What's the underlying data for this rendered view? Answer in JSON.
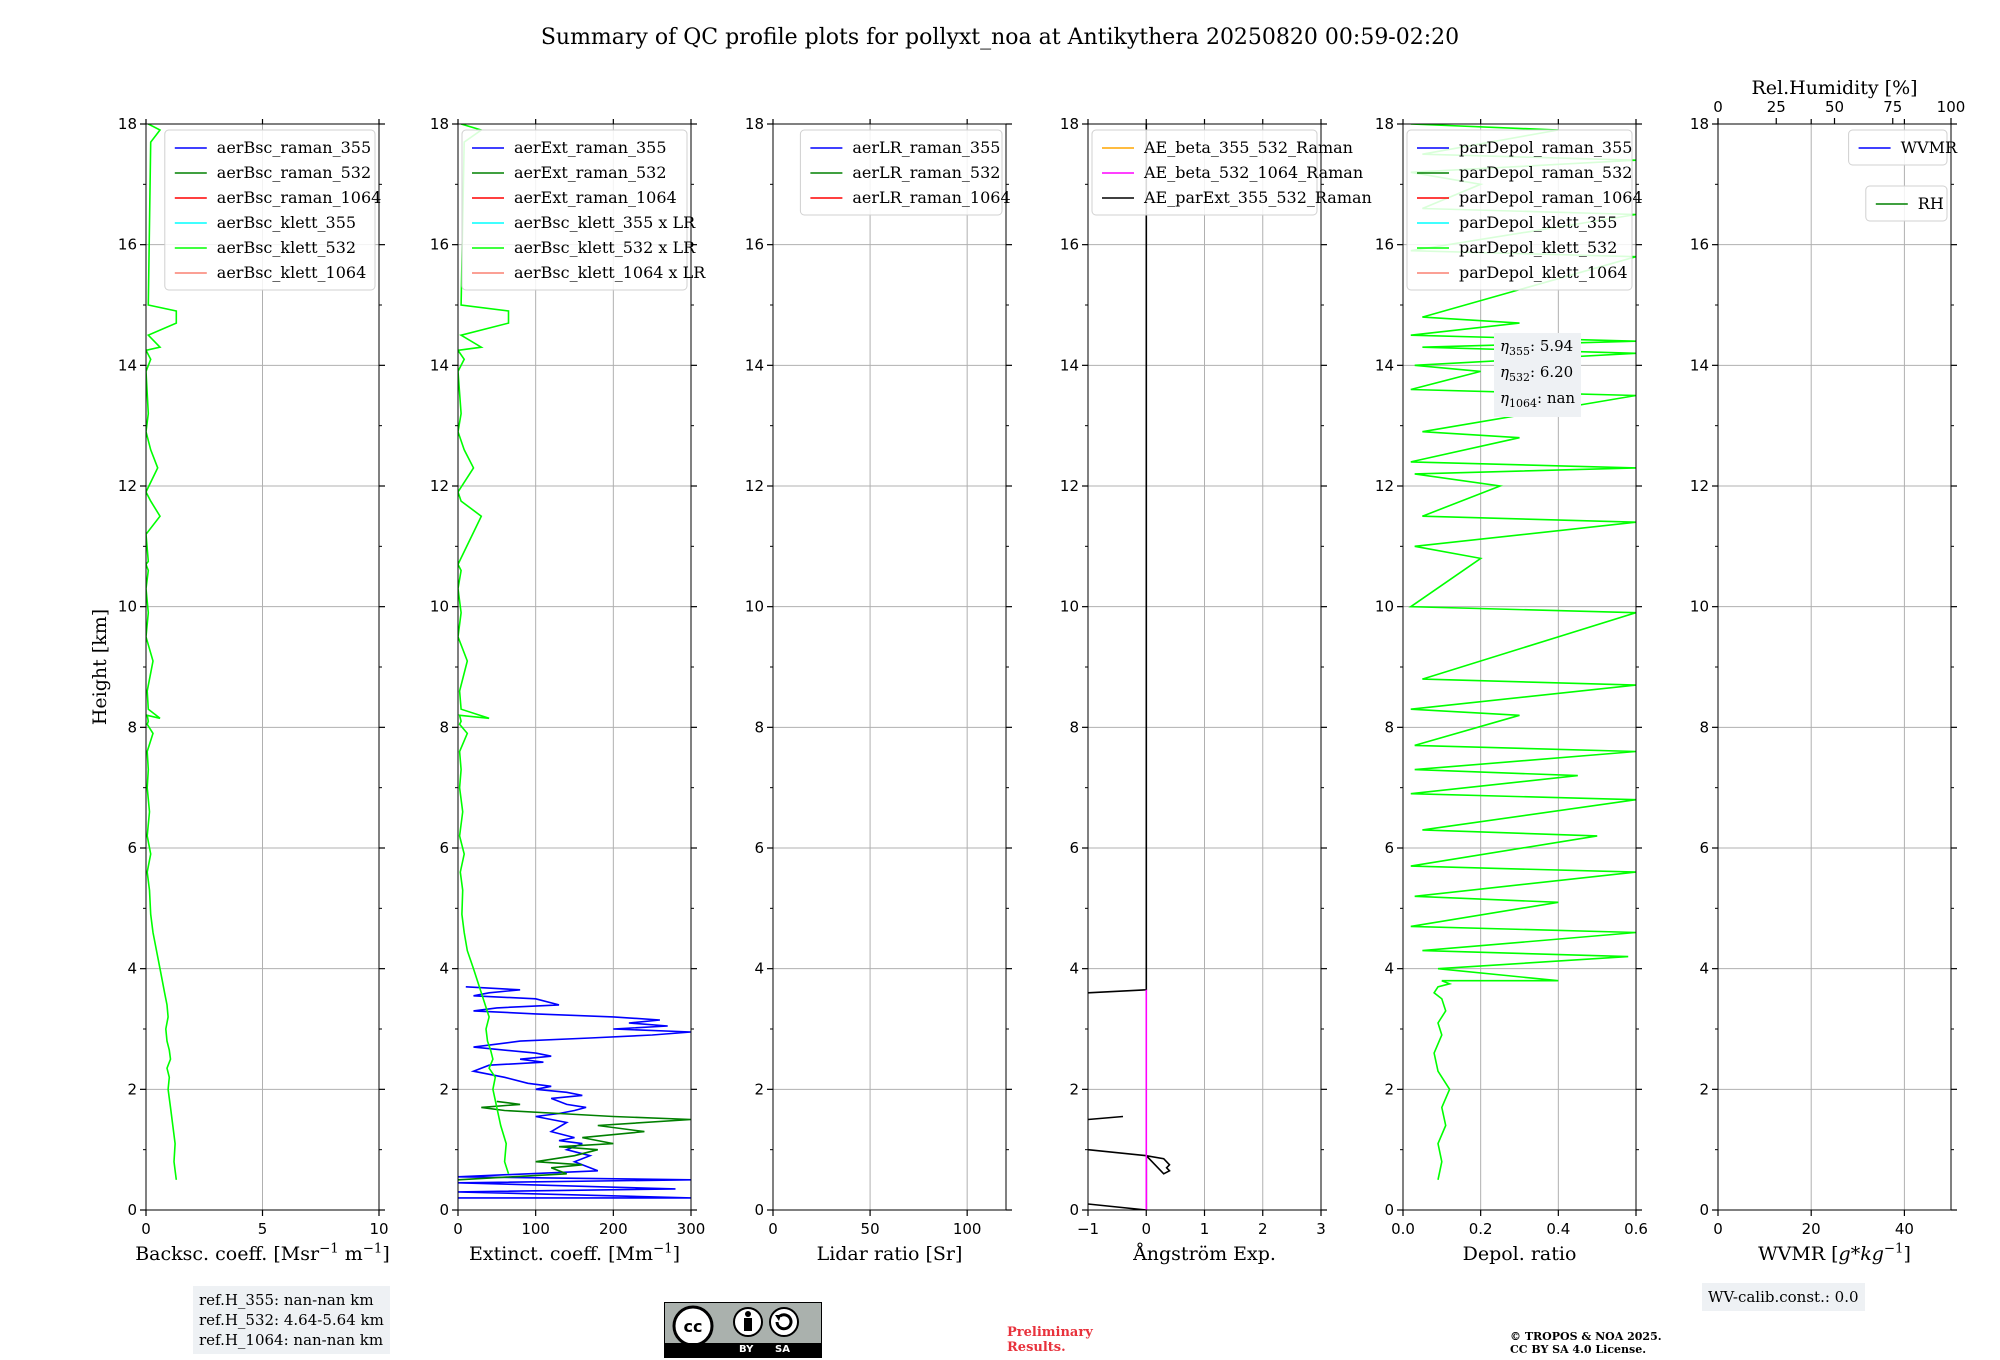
{
  "figure": {
    "title": "Summary of QC profile plots for pollyxt_noa at Antikythera 20250820 00:59-02:20"
  },
  "annotations": {
    "refh": [
      "ref.H_355: nan-nan km",
      "ref.H_532: 4.64-5.64 km",
      "ref.H_1064: nan-nan km"
    ],
    "eta": [
      "355",
      "5.94",
      "532",
      "6.20",
      "1064",
      "nan"
    ],
    "wv_calib": "WV-calib.const.: 0.0",
    "preliminary": [
      "Preliminary",
      "Results."
    ],
    "copyright": [
      "© TROPOS & NOA 2025.",
      "CC BY SA 4.0 License."
    ],
    "cc_badge": [
      "cc",
      "BY",
      "SA"
    ]
  },
  "colors": {
    "blue": "#0000ff",
    "green": "#008000",
    "red": "#ff0000",
    "cyan": "#00ffff",
    "lime": "#00ff00",
    "salmon": "#fa8072",
    "orange": "#ffa500",
    "magenta": "#ff00ff",
    "black": "#000000",
    "grid": "#b0b0b0"
  },
  "chart_data": [
    {
      "type": "line",
      "ylabel": "Height [km]",
      "xlabel": "Backsc. coeff. [Msr$^{-1}$ m$^{-1}$]",
      "xlim": [
        0,
        10
      ],
      "ylim": [
        0,
        18
      ],
      "xticks": [
        "0",
        "5",
        "10"
      ],
      "yticks": [
        "0",
        "2",
        "4",
        "6",
        "8",
        "10",
        "12",
        "14",
        "16",
        "18"
      ],
      "grid": true,
      "legend_position": "top-right",
      "legend": [
        "aerBsc_raman_355",
        "aerBsc_raman_532",
        "aerBsc_raman_1064",
        "aerBsc_klett_355",
        "aerBsc_klett_532",
        "aerBsc_klett_1064"
      ],
      "legend_colors": [
        "blue",
        "green",
        "red",
        "cyan",
        "lime",
        "salmon"
      ],
      "series": [
        {
          "name": "aerBsc_klett_532",
          "color": "lime",
          "x": [
            1.3,
            1.2,
            1.25,
            1.15,
            1.05,
            0.95,
            1.0,
            0.9,
            1.05,
            1.0,
            0.9,
            0.85,
            0.95,
            0.9,
            0.8,
            0.7,
            0.6,
            0.45,
            0.3,
            0.2,
            0.15,
            0.05,
            0.2,
            0.05,
            0.15,
            0.05,
            0.1,
            0.05,
            0.3,
            0.05,
            0.1,
            0.05,
            0.6,
            0.1,
            0.05,
            0.3,
            0.0,
            0.1,
            0.0,
            0.1,
            0.0,
            0.1,
            0.0,
            0.6,
            0.2,
            0.0,
            0.5,
            0.2,
            0.0,
            0.1,
            0.0,
            0.2,
            0.0,
            0.6,
            0.1,
            1.3,
            1.3,
            0.1,
            0.2,
            0.6,
            0.1
          ],
          "y": [
            0.5,
            0.8,
            1.1,
            1.4,
            1.7,
            2.0,
            2.2,
            2.35,
            2.5,
            2.65,
            2.8,
            3.0,
            3.2,
            3.4,
            3.6,
            3.8,
            4.0,
            4.3,
            4.6,
            4.9,
            5.3,
            5.6,
            5.9,
            6.2,
            6.6,
            7.0,
            7.3,
            7.6,
            7.9,
            8.05,
            8.1,
            8.2,
            8.15,
            8.3,
            8.6,
            9.1,
            9.5,
            9.9,
            10.3,
            10.6,
            10.7,
            10.75,
            11.2,
            11.5,
            11.75,
            11.9,
            12.3,
            12.6,
            12.9,
            13.2,
            13.9,
            14.1,
            14.25,
            14.3,
            14.5,
            14.7,
            14.9,
            15.0,
            17.7,
            17.9,
            18.0
          ]
        }
      ]
    },
    {
      "type": "line",
      "xlabel": "Extinct. coeff. [Mm$^{-1}$]",
      "xlim": [
        0,
        300
      ],
      "ylim": [
        0,
        18
      ],
      "xticks": [
        "0",
        "100",
        "200",
        "300"
      ],
      "yticks": [
        "0",
        "2",
        "4",
        "6",
        "8",
        "10",
        "12",
        "14",
        "16",
        "18"
      ],
      "grid": true,
      "legend_position": "top-right",
      "legend": [
        "aerExt_raman_355",
        "aerExt_raman_532",
        "aerExt_raman_1064",
        "aerBsc_klett_355 x LR",
        "aerBsc_klett_532 x LR",
        "aerBsc_klett_1064 x LR"
      ],
      "legend_colors": [
        "blue",
        "green",
        "red",
        "cyan",
        "lime",
        "salmon"
      ],
      "series": [
        {
          "name": "aerExt_raman_355",
          "color": "blue",
          "x": [
            0,
            300,
            0,
            280,
            0,
            300,
            0,
            180,
            150,
            170,
            140,
            160,
            130,
            150,
            120,
            140,
            100,
            130,
            150,
            165,
            140,
            120,
            160,
            140,
            100,
            120,
            90,
            60,
            20,
            40,
            110,
            80,
            120,
            100,
            20,
            80,
            170,
            250,
            300,
            200,
            270,
            220,
            260,
            200,
            100,
            20,
            50,
            130,
            100,
            20,
            40,
            80,
            10
          ],
          "x_note": "extinction in Mm-1",
          "y": [
            0.2,
            0.2,
            0.3,
            0.35,
            0.45,
            0.5,
            0.55,
            0.65,
            0.8,
            0.9,
            1.0,
            1.1,
            1.15,
            1.2,
            1.3,
            1.45,
            1.55,
            1.6,
            1.65,
            1.7,
            1.75,
            1.85,
            1.9,
            1.95,
            2.0,
            2.05,
            2.1,
            2.2,
            2.3,
            2.4,
            2.45,
            2.5,
            2.55,
            2.6,
            2.7,
            2.8,
            2.85,
            2.9,
            2.95,
            3.0,
            3.05,
            3.1,
            3.15,
            3.2,
            3.25,
            3.3,
            3.35,
            3.4,
            3.5,
            3.55,
            3.6,
            3.65,
            3.7
          ]
        },
        {
          "name": "aerExt_raman_532",
          "color": "green",
          "x": [
            0,
            140,
            120,
            160,
            100,
            150,
            180,
            130,
            200,
            160,
            240,
            180,
            300,
            200,
            130,
            60,
            30,
            80,
            50
          ],
          "y": [
            0.5,
            0.6,
            0.7,
            0.75,
            0.8,
            0.9,
            1.0,
            1.05,
            1.1,
            1.2,
            1.3,
            1.4,
            1.5,
            1.55,
            1.6,
            1.65,
            1.7,
            1.75,
            1.8
          ]
        },
        {
          "name": "aerBsc_klett_532 x LR",
          "color": "lime",
          "x": [
            65,
            60,
            62,
            55,
            50,
            45,
            48,
            40,
            45,
            42,
            38,
            36,
            40,
            35,
            30,
            25,
            20,
            12,
            8,
            5,
            6,
            3,
            8,
            2,
            6,
            2,
            4,
            2,
            12,
            2,
            4,
            2,
            40,
            4,
            2,
            12,
            0,
            4,
            0,
            4,
            0,
            30,
            4,
            0,
            20,
            8,
            0,
            4,
            0,
            8,
            0,
            30,
            4,
            65,
            65,
            4,
            8,
            30,
            4
          ],
          "y": [
            0.6,
            0.8,
            1.1,
            1.4,
            1.7,
            2.0,
            2.2,
            2.35,
            2.5,
            2.65,
            2.8,
            3.0,
            3.2,
            3.4,
            3.6,
            3.8,
            4.0,
            4.3,
            4.6,
            4.9,
            5.3,
            5.6,
            5.9,
            6.2,
            6.6,
            7.0,
            7.3,
            7.6,
            7.9,
            8.05,
            8.1,
            8.2,
            8.15,
            8.3,
            8.6,
            9.1,
            9.5,
            9.9,
            10.3,
            10.6,
            10.7,
            11.5,
            11.75,
            11.9,
            12.3,
            12.6,
            12.9,
            13.2,
            13.9,
            14.1,
            14.25,
            14.3,
            14.5,
            14.7,
            14.9,
            15.0,
            17.7,
            17.9,
            18.0
          ]
        }
      ]
    },
    {
      "type": "line",
      "xlabel": "Lidar ratio [Sr]",
      "xlim": [
        0,
        120
      ],
      "ylim": [
        0,
        18
      ],
      "xticks": [
        "0",
        "50",
        "100"
      ],
      "yticks": [
        "0",
        "2",
        "4",
        "6",
        "8",
        "10",
        "12",
        "14",
        "16",
        "18"
      ],
      "grid": true,
      "legend_position": "top-right",
      "legend": [
        "aerLR_raman_355",
        "aerLR_raman_532",
        "aerLR_raman_1064"
      ],
      "legend_colors": [
        "blue",
        "green",
        "red"
      ],
      "series": []
    },
    {
      "type": "line",
      "xlabel": "Ångström Exp.",
      "xlim": [
        -1,
        3
      ],
      "ylim": [
        0,
        18
      ],
      "xticks": [
        "−1",
        "0",
        "1",
        "2",
        "3"
      ],
      "yticks": [
        "0",
        "2",
        "4",
        "6",
        "8",
        "10",
        "12",
        "14",
        "16",
        "18"
      ],
      "grid": true,
      "legend_position": "top-right",
      "legend": [
        "AE_beta_355_532_Raman",
        "AE_beta_532_1064_Raman",
        "AE_parExt_355_532_Raman"
      ],
      "legend_colors": [
        "orange",
        "magenta",
        "black"
      ],
      "series": [
        {
          "name": "AE_parExt_355_532_Raman",
          "color": "black",
          "x": [
            -1,
            0,
            0,
            0.3,
            0.4,
            0.35,
            0.4,
            0.3,
            0,
            -1
          ],
          "y": [
            0.1,
            0,
            0.9,
            0.85,
            0.75,
            0.7,
            0.65,
            0.6,
            0.9,
            1.0
          ]
        },
        {
          "name": "AE_parExt_355_532_Raman",
          "color": "black",
          "x": [
            -1,
            -0.4
          ],
          "y": [
            1.5,
            1.55
          ]
        },
        {
          "name": "AE_parExt_355_532_Raman",
          "color": "black",
          "x": [
            -1,
            0,
            0,
            0
          ],
          "y": [
            3.6,
            3.65,
            3.65,
            18
          ]
        },
        {
          "name": "AE_beta_532_1064_Raman",
          "color": "magenta",
          "x": [
            0,
            0
          ],
          "y": [
            0,
            3.65
          ]
        }
      ]
    },
    {
      "type": "line",
      "xlabel": "Depol. ratio",
      "xlim": [
        0,
        0.6
      ],
      "ylim": [
        0,
        18
      ],
      "xticks": [
        "0.0",
        "0.2",
        "0.4",
        "0.6"
      ],
      "yticks": [
        "0",
        "2",
        "4",
        "6",
        "8",
        "10",
        "12",
        "14",
        "16",
        "18"
      ],
      "grid": true,
      "legend_position": "top-left",
      "legend": [
        "parDepol_raman_355",
        "parDepol_raman_532",
        "parDepol_raman_1064",
        "parDepol_klett_355",
        "parDepol_klett_532",
        "parDepol_klett_1064"
      ],
      "legend_colors": [
        "blue",
        "green",
        "red",
        "cyan",
        "lime",
        "salmon"
      ],
      "series": [
        {
          "name": "parDepol_klett_532",
          "color": "lime",
          "x": [
            0.09,
            0.1,
            0.09,
            0.11,
            0.1,
            0.12,
            0.09,
            0.08,
            0.1,
            0.09,
            0.11,
            0.1,
            0.08,
            0.09,
            0.12,
            0.1,
            0.4,
            0.09,
            0.58,
            0.05,
            0.6,
            0.02,
            0.4,
            0.03,
            0.6,
            0.02,
            0.5,
            0.05,
            0.6,
            0.02,
            0.45,
            0.03,
            0.6,
            0.03,
            0.3,
            0.02,
            0.6,
            0.05,
            0.6,
            0.02,
            0.2,
            0.03,
            0.6,
            0.05,
            0.25,
            0.03,
            0.6,
            0.02,
            0.3,
            0.05,
            0.6,
            0.02,
            0.2,
            0.03,
            0.6,
            0.05,
            0.6,
            0.02,
            0.3,
            0.05,
            0.6,
            0.02,
            0.6,
            0.05,
            0.2,
            0.02,
            0.6,
            0.05,
            0.4,
            0.02
          ],
          "y": [
            0.5,
            0.8,
            1.1,
            1.4,
            1.7,
            2.0,
            2.3,
            2.6,
            2.9,
            3.1,
            3.3,
            3.5,
            3.6,
            3.7,
            3.75,
            3.8,
            3.8,
            4.0,
            4.2,
            4.3,
            4.6,
            4.7,
            5.1,
            5.2,
            5.6,
            5.7,
            6.2,
            6.3,
            6.8,
            6.9,
            7.2,
            7.3,
            7.6,
            7.7,
            8.2,
            8.3,
            8.7,
            8.8,
            9.9,
            10.0,
            10.8,
            11.0,
            11.4,
            11.5,
            12.0,
            12.2,
            12.3,
            12.4,
            12.8,
            12.9,
            13.5,
            13.6,
            13.9,
            14.0,
            14.2,
            14.3,
            14.4,
            14.5,
            14.7,
            14.8,
            15.8,
            15.9,
            16.5,
            16.6,
            17.0,
            17.2,
            17.4,
            17.5,
            17.9,
            18.0
          ]
        }
      ]
    },
    {
      "type": "line",
      "xlabel": "WVMR [$g*kg^{-1}$]",
      "xlim": [
        0,
        50
      ],
      "ylim": [
        0,
        18
      ],
      "xticks": [
        "0",
        "20",
        "40"
      ],
      "yticks": [
        "0",
        "2",
        "4",
        "6",
        "8",
        "10",
        "12",
        "14",
        "16",
        "18"
      ],
      "top_label": "Rel.Humidity [%]",
      "top_ticks": [
        "0",
        "25",
        "50",
        "75",
        "100"
      ],
      "grid": true,
      "legend_position": "top-right",
      "legend": [
        "WVMR"
      ],
      "legend_colors": [
        "blue"
      ],
      "legend2": [
        "RH"
      ],
      "legend2_colors": [
        "green"
      ],
      "series": []
    }
  ]
}
